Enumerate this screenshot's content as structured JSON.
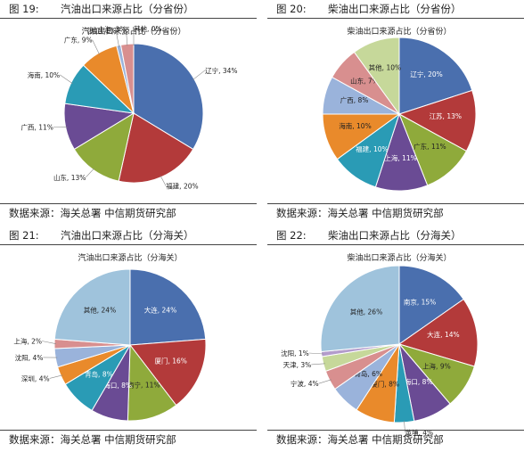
{
  "chart_data": [
    {
      "type": "pie",
      "figure_label": "图 19:",
      "caption": "汽油出口来源占比（分省份）",
      "title": "汽油出口来源占比（分省份）",
      "source": "数据来源：海关总署  中信期货研究部",
      "slices": [
        {
          "label": "辽宁, 34%",
          "value": 34,
          "color": "#4a6fae"
        },
        {
          "label": "福建, 20%",
          "value": 20,
          "color": "#b33a3a"
        },
        {
          "label": "山东, 13%",
          "value": 13,
          "color": "#8faa3b"
        },
        {
          "label": "广西, 11%",
          "value": 11,
          "color": "#6a4b94"
        },
        {
          "label": "海南, 10%",
          "value": 10,
          "color": "#2a9bb5"
        },
        {
          "label": "广东, 9%",
          "value": 9,
          "color": "#e98a2b"
        },
        {
          "label": "浙江, 1%",
          "value": 1,
          "color": "#9ab3db"
        },
        {
          "label": "上海, 3%",
          "value": 3,
          "color": "#d88f8f"
        },
        {
          "label": "其他, 0%",
          "value": 0,
          "color": "#c6d89a"
        }
      ]
    },
    {
      "type": "pie",
      "figure_label": "图 20:",
      "caption": "柴油出口来源占比（分省份）",
      "title": "柴油出口来源占比（分省份）",
      "source": "数据来源：海关总署  中信期货研究部",
      "slices": [
        {
          "label": "辽宁, 20%",
          "value": 20,
          "color": "#4a6fae"
        },
        {
          "label": "江苏, 13%",
          "value": 13,
          "color": "#b33a3a"
        },
        {
          "label": "广东, 11%",
          "value": 11,
          "color": "#8faa3b"
        },
        {
          "label": "上海, 11%",
          "value": 11,
          "color": "#6a4b94"
        },
        {
          "label": "福建, 10%",
          "value": 10,
          "color": "#2a9bb5"
        },
        {
          "label": "海南, 10%",
          "value": 10,
          "color": "#e98a2b"
        },
        {
          "label": "广西, 8%",
          "value": 8,
          "color": "#9ab3db"
        },
        {
          "label": "山东, 7%",
          "value": 7,
          "color": "#d88f8f"
        },
        {
          "label": "其他, 10%",
          "value": 10,
          "color": "#c6d89a"
        }
      ]
    },
    {
      "type": "pie",
      "figure_label": "图 21:",
      "caption": "汽油出口来源占比（分海关）",
      "title": "汽油出口来源占比（分海关）",
      "source": "数据来源：海关总署  中信期货研究部",
      "slices": [
        {
          "label": "大连, 24%",
          "value": 24,
          "color": "#4a6fae"
        },
        {
          "label": "厦门, 16%",
          "value": 16,
          "color": "#b33a3a"
        },
        {
          "label": "南宁, 11%",
          "value": 11,
          "color": "#8faa3b"
        },
        {
          "label": "海口, 8%",
          "value": 8,
          "color": "#6a4b94"
        },
        {
          "label": "青岛, 8%",
          "value": 8,
          "color": "#2a9bb5"
        },
        {
          "label": "深圳, 4%",
          "value": 4,
          "color": "#e98a2b"
        },
        {
          "label": "沈阳, 4%",
          "value": 4,
          "color": "#9ab3db"
        },
        {
          "label": "上海, 2%",
          "value": 2,
          "color": "#d88f8f"
        },
        {
          "label": "其他, 24%",
          "value": 24,
          "color": "#9fc3dc"
        }
      ]
    },
    {
      "type": "pie",
      "figure_label": "图 22:",
      "caption": "柴油出口来源占比（分海关）",
      "title": "柴油出口来源占比（分海关）",
      "source": "数据来源：海关总署  中信期货研究部",
      "slices": [
        {
          "label": "南京, 15%",
          "value": 15,
          "color": "#4a6fae"
        },
        {
          "label": "大连, 14%",
          "value": 14,
          "color": "#b33a3a"
        },
        {
          "label": "上海, 9%",
          "value": 9,
          "color": "#8faa3b"
        },
        {
          "label": "海口, 8%",
          "value": 8,
          "color": "#6a4b94"
        },
        {
          "label": "黄埔, 4%",
          "value": 4,
          "color": "#2a9bb5"
        },
        {
          "label": "厦门, 8%",
          "value": 8,
          "color": "#e98a2b"
        },
        {
          "label": "青岛, 6%",
          "value": 6,
          "color": "#9ab3db"
        },
        {
          "label": "宁波, 4%",
          "value": 4,
          "color": "#d88f8f"
        },
        {
          "label": "天津, 3%",
          "value": 3,
          "color": "#c6d89a"
        },
        {
          "label": "沈阳, 1%",
          "value": 1,
          "color": "#b39ccc"
        },
        {
          "label": "其他, 26%",
          "value": 26,
          "color": "#9fc3dc"
        }
      ]
    }
  ]
}
